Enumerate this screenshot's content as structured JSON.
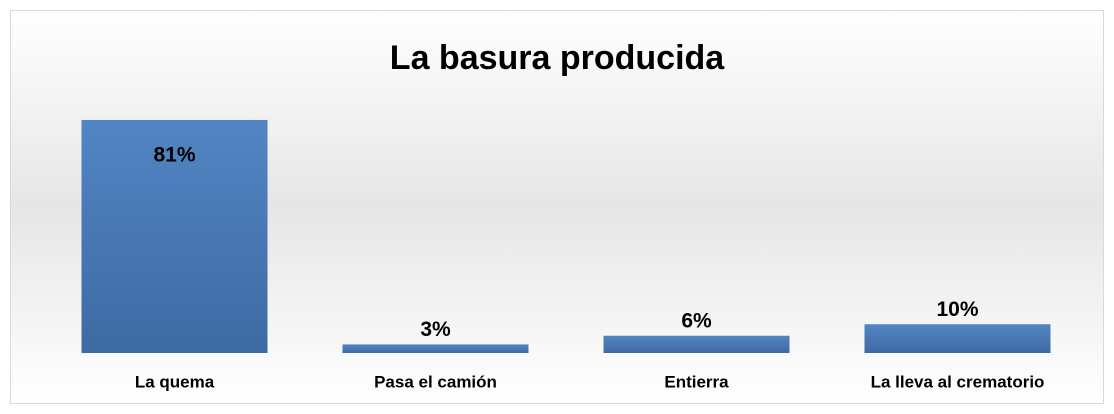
{
  "chart_data": {
    "type": "bar",
    "title": "La basura producida",
    "categories": [
      "La quema",
      "Pasa el camión",
      "Entierra",
      "La lleva al crematorio"
    ],
    "values": [
      81,
      3,
      6,
      10
    ],
    "value_labels": [
      "81%",
      "3%",
      "6%",
      "10%"
    ],
    "color": "#4f81bd"
  }
}
